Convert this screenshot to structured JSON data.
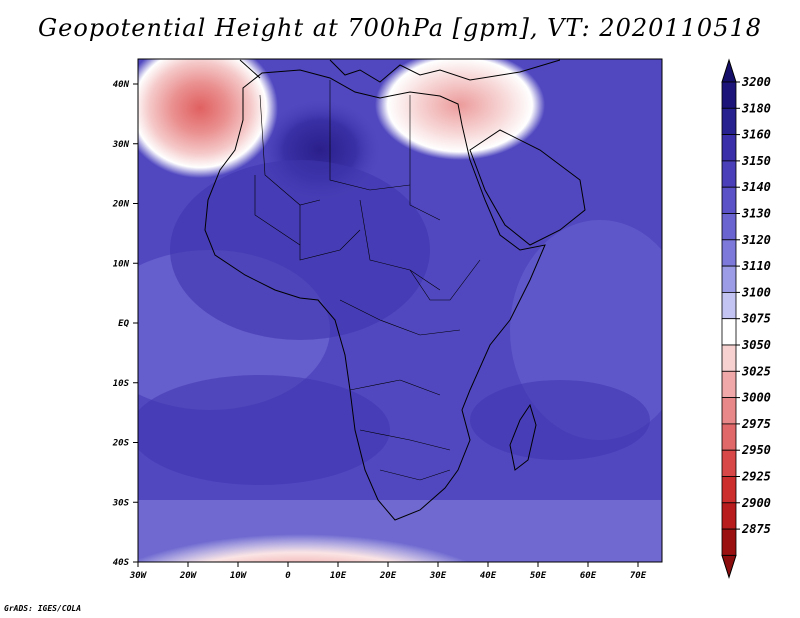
{
  "title": "Geopotential Height at 700hPa [gpm], VT: 2020110518",
  "credit": "GrADS: IGES/COLA",
  "axes": {
    "lon_labels": [
      "30W",
      "20W",
      "10W",
      "0",
      "10E",
      "20E",
      "30E",
      "40E",
      "50E",
      "60E",
      "70E"
    ],
    "lat_labels": [
      "40N",
      "30N",
      "20N",
      "10N",
      "EQ",
      "10S",
      "20S",
      "30S",
      "40S"
    ]
  },
  "colorbar": {
    "levels": [
      "3200",
      "3180",
      "3160",
      "3150",
      "3140",
      "3130",
      "3120",
      "3110",
      "3100",
      "3075",
      "3050",
      "3025",
      "3000",
      "2975",
      "2950",
      "2925",
      "2900",
      "2875"
    ],
    "colors": [
      "#1c1478",
      "#27208f",
      "#3a2fa8",
      "#4a3fb8",
      "#5a52c6",
      "#6a64d0",
      "#7c79da",
      "#9b9be6",
      "#c4c4f2",
      "#ffffff",
      "#f7d0d0",
      "#f0a8a8",
      "#e88888",
      "#e06868",
      "#d84848",
      "#cc2e2e",
      "#b81c1c",
      "#9a1010"
    ],
    "top_arrow_color": "#160f6a",
    "bottom_arrow_color": "#8a0c0c"
  }
}
